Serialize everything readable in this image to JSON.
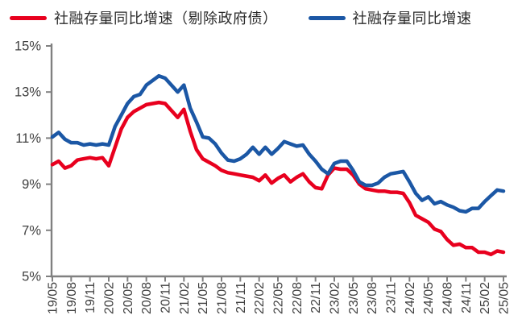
{
  "legend": {
    "items": [
      {
        "label": "社融存量同比增速（剔除政府债）",
        "color": "#e8001e"
      },
      {
        "label": "社融存量同比增速",
        "color": "#1b57a5"
      }
    ]
  },
  "chart_data": {
    "type": "line",
    "title": "",
    "xlabel": "",
    "ylabel": "",
    "ylim": [
      5,
      15
    ],
    "grid": false,
    "legend_position": "top",
    "axis_color": "#808080",
    "tick_label_color": "#404040",
    "y_ticks": [
      {
        "value": 5,
        "label": "5%"
      },
      {
        "value": 7,
        "label": "7%"
      },
      {
        "value": 9,
        "label": "9%"
      },
      {
        "value": 11,
        "label": "11%"
      },
      {
        "value": 13,
        "label": "13%"
      },
      {
        "value": 15,
        "label": "15%"
      }
    ],
    "x_tick_every": 3,
    "x_tick_labels": [
      "19/05",
      "19/08",
      "19/11",
      "20/02",
      "20/05",
      "20/08",
      "20/11",
      "21/02",
      "21/05",
      "21/08",
      "21/11",
      "22/02",
      "22/05",
      "22/08",
      "22/11",
      "23/02",
      "23/05",
      "23/08",
      "23/11",
      "24/02",
      "24/05",
      "24/08",
      "24/11",
      "25/02",
      "25/05"
    ],
    "x": [
      "19/05",
      "19/06",
      "19/07",
      "19/08",
      "19/09",
      "19/10",
      "19/11",
      "19/12",
      "20/01",
      "20/02",
      "20/03",
      "20/04",
      "20/05",
      "20/06",
      "20/07",
      "20/08",
      "20/09",
      "20/10",
      "20/11",
      "20/12",
      "21/01",
      "21/02",
      "21/03",
      "21/04",
      "21/05",
      "21/06",
      "21/07",
      "21/08",
      "21/09",
      "21/10",
      "21/11",
      "21/12",
      "22/01",
      "22/02",
      "22/03",
      "22/04",
      "22/05",
      "22/06",
      "22/07",
      "22/08",
      "22/09",
      "22/10",
      "22/11",
      "22/12",
      "23/01",
      "23/02",
      "23/03",
      "23/04",
      "23/05",
      "23/06",
      "23/07",
      "23/08",
      "23/09",
      "23/10",
      "23/11",
      "23/12",
      "24/01",
      "24/02",
      "24/03",
      "24/04",
      "24/05",
      "24/06",
      "24/07",
      "24/08",
      "24/09",
      "24/10",
      "24/11",
      "24/12",
      "25/01",
      "25/02",
      "25/03",
      "25/04",
      "25/05"
    ],
    "series": [
      {
        "name": "社融存量同比增速（剔除政府债）",
        "color": "#e8001e",
        "stroke_width": 4.5,
        "values": [
          9.85,
          10.0,
          9.7,
          9.8,
          10.05,
          10.1,
          10.15,
          10.1,
          10.15,
          9.8,
          10.6,
          11.4,
          11.9,
          12.15,
          12.3,
          12.45,
          12.5,
          12.55,
          12.5,
          12.2,
          11.9,
          12.25,
          11.3,
          10.5,
          10.1,
          9.95,
          9.8,
          9.6,
          9.5,
          9.45,
          9.4,
          9.35,
          9.3,
          9.15,
          9.4,
          9.05,
          9.25,
          9.4,
          9.1,
          9.3,
          9.45,
          9.1,
          8.85,
          8.8,
          9.4,
          9.7,
          9.65,
          9.65,
          9.4,
          9.0,
          8.8,
          8.75,
          8.7,
          8.7,
          8.65,
          8.65,
          8.6,
          8.2,
          7.65,
          7.5,
          7.35,
          7.05,
          6.95,
          6.6,
          6.35,
          6.4,
          6.25,
          6.25,
          6.05,
          6.05,
          5.95,
          6.1,
          6.05
        ]
      },
      {
        "name": "社融存量同比增速",
        "color": "#1b57a5",
        "stroke_width": 4.5,
        "values": [
          11.05,
          11.25,
          10.95,
          10.8,
          10.8,
          10.7,
          10.75,
          10.7,
          10.75,
          10.7,
          11.5,
          12.0,
          12.5,
          12.8,
          12.9,
          13.3,
          13.5,
          13.7,
          13.6,
          13.3,
          13.0,
          13.3,
          12.3,
          11.7,
          11.05,
          11.0,
          10.75,
          10.35,
          10.05,
          10.0,
          10.1,
          10.3,
          10.6,
          10.3,
          10.6,
          10.3,
          10.55,
          10.85,
          10.75,
          10.65,
          10.7,
          10.3,
          10.0,
          9.65,
          9.45,
          9.9,
          10.0,
          10.0,
          9.6,
          9.1,
          8.95,
          8.95,
          9.05,
          9.3,
          9.45,
          9.5,
          9.55,
          9.1,
          8.6,
          8.3,
          8.45,
          8.15,
          8.25,
          8.1,
          8.0,
          7.85,
          7.8,
          7.95,
          7.95,
          8.25,
          8.5,
          8.75,
          8.7
        ]
      }
    ]
  }
}
